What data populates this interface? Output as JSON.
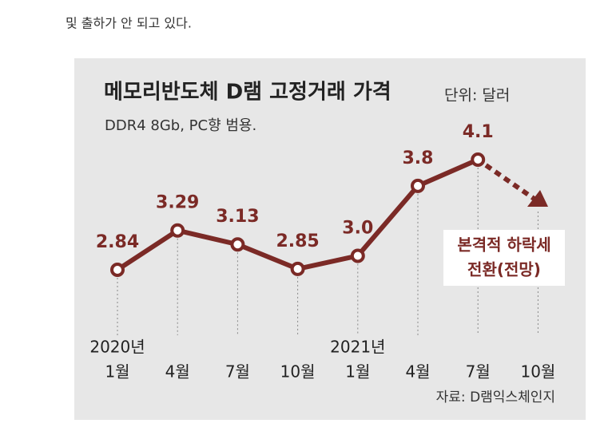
{
  "article_text": "및 출하가 안 되고 있다.",
  "chart_data": {
    "type": "line",
    "title": "메모리반도체 D램 고정거래 가격",
    "unit": "단위: 달러",
    "subtitle": "DDR4 8Gb, PC향 범용.",
    "categories": [
      "1월",
      "4월",
      "7월",
      "10월",
      "1월",
      "4월",
      "7월",
      "10월"
    ],
    "year_labels": [
      "2020년",
      null,
      null,
      null,
      "2021년",
      null,
      null,
      null
    ],
    "values": [
      2.84,
      3.29,
      3.13,
      2.85,
      3.0,
      3.8,
      4.1,
      null
    ],
    "value_labels": [
      "2.84",
      "3.29",
      "3.13",
      "2.85",
      "3.0",
      "3.8",
      "4.1",
      null
    ],
    "color": "#7b2a26",
    "annotation": [
      "본격적 하락세",
      "전환(전망)"
    ],
    "source": "자료: D램익스체인지"
  }
}
